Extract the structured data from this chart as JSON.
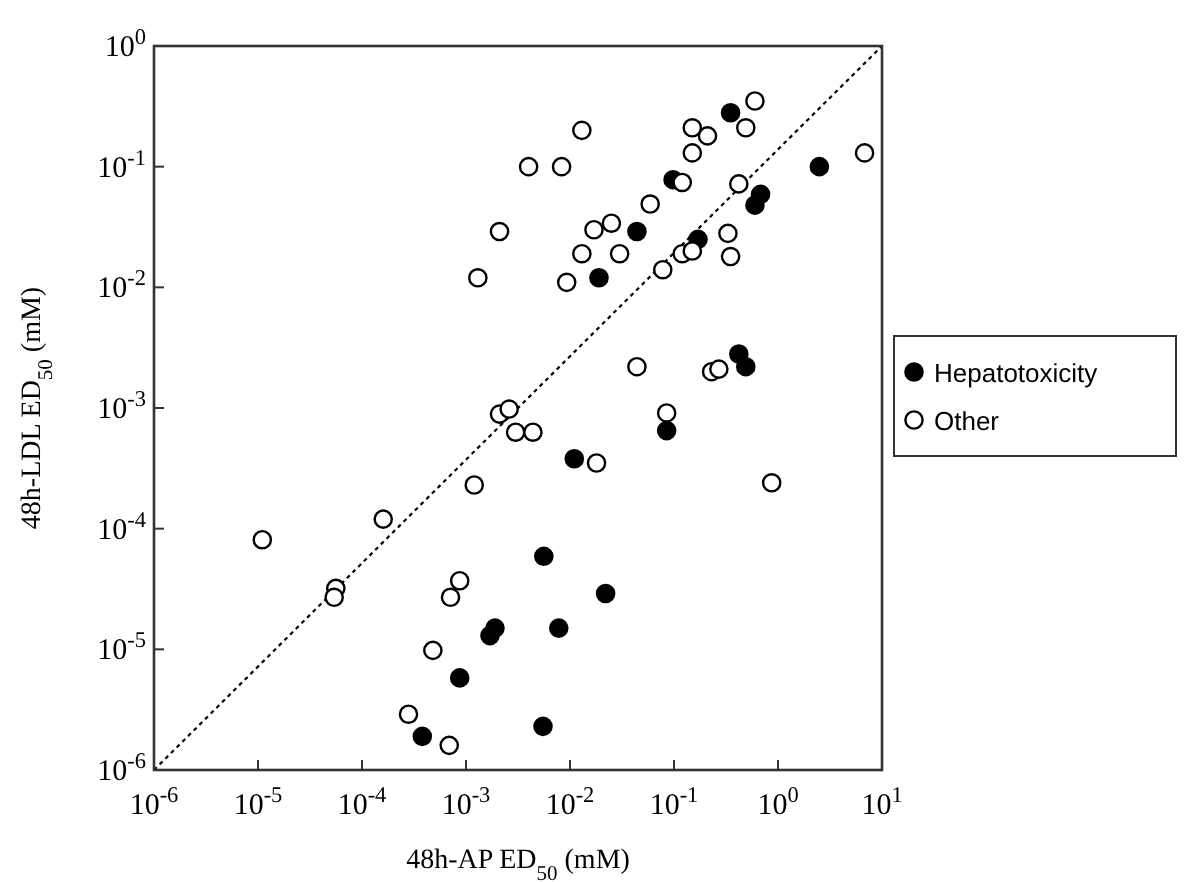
{
  "chart_data": {
    "type": "scatter",
    "xlabel": "48h-AP ED$_{50}$ (mM)",
    "ylabel": "48h-LDL ED$_{50}$ (mM)",
    "log": "xy",
    "grid": false,
    "legend": "right",
    "marker": "circle",
    "xlim": [
      1e-06,
      10
    ],
    "ylim": [
      1e-06,
      1
    ],
    "xticks": [
      {
        "value": 1e-06,
        "label": "10$^{-6}$"
      },
      {
        "value": 1e-05,
        "label": "10$^{-5}$"
      },
      {
        "value": 0.0001,
        "label": "10$^{-4}$"
      },
      {
        "value": 0.001,
        "label": "10$^{-3}$"
      },
      {
        "value": 0.01,
        "label": "10$^{-2}$"
      },
      {
        "value": 0.1,
        "label": "10$^{-1}$"
      },
      {
        "value": 1,
        "label": "10$^{0}$"
      },
      {
        "value": 10,
        "label": "10$^{1}$"
      }
    ],
    "yticks": [
      {
        "value": 1e-06,
        "label": "10$^{-6}$"
      },
      {
        "value": 1e-05,
        "label": "10$^{-5}$"
      },
      {
        "value": 0.0001,
        "label": "10$^{-4}$"
      },
      {
        "value": 0.001,
        "label": "10$^{-3}$"
      },
      {
        "value": 0.01,
        "label": "10$^{-2}$"
      },
      {
        "value": 0.1,
        "label": "10$^{-1}$"
      },
      {
        "value": 1,
        "label": "10$^{0}$"
      }
    ],
    "series": [
      {
        "type": "line",
        "color": "#000000",
        "line_style": "dotted",
        "marker": "none",
        "x": [
          1e-06,
          10
        ],
        "values": [
          1e-06,
          1
        ]
      },
      {
        "name": "Hepatotoxicity",
        "color": "#000000",
        "x": [
          0.019,
          0.044,
          0.098,
          0.17,
          0.35,
          0.68,
          0.6,
          2.5,
          0.42,
          0.49,
          0.085,
          0.011,
          0.0056,
          0.022,
          0.0019,
          0.0017,
          0.0078,
          0.00087,
          0.00038,
          0.0055
        ],
        "values": [
          0.012,
          0.029,
          0.078,
          0.025,
          0.28,
          0.059,
          0.048,
          0.1,
          0.0028,
          0.0022,
          0.00065,
          0.00038,
          5.9e-05,
          2.9e-05,
          1.5e-05,
          1.3e-05,
          1.5e-05,
          5.8e-06,
          1.9e-06,
          2.3e-06
        ]
      },
      {
        "name": "Other",
        "color": "#ffffff",
        "x": [
          0.004,
          0.0083,
          0.013,
          0.0021,
          0.0013,
          0.0093,
          0.013,
          0.017,
          0.025,
          0.03,
          0.059,
          0.12,
          0.078,
          0.12,
          0.15,
          0.15,
          0.15,
          0.21,
          0.49,
          0.6,
          0.42,
          0.33,
          0.35,
          6.8,
          0.044,
          0.23,
          0.27,
          0.0021,
          0.0026,
          0.003,
          0.0044,
          0.085,
          0.018,
          0.0012,
          0.87,
          0.00016,
          1.1e-05,
          5.6e-05,
          5.4e-05,
          0.00087,
          0.00071,
          0.00048,
          0.00028,
          0.00069
        ],
        "values": [
          0.1,
          0.1,
          0.2,
          0.029,
          0.012,
          0.011,
          0.019,
          0.03,
          0.034,
          0.019,
          0.049,
          0.074,
          0.014,
          0.019,
          0.02,
          0.13,
          0.21,
          0.18,
          0.21,
          0.35,
          0.072,
          0.028,
          0.018,
          0.13,
          0.0022,
          0.002,
          0.0021,
          0.00089,
          0.00098,
          0.00063,
          0.00063,
          0.00091,
          0.00035,
          0.00023,
          0.00024,
          0.00012,
          8.1e-05,
          3.2e-05,
          2.7e-05,
          3.7e-05,
          2.7e-05,
          9.8e-06,
          2.9e-06,
          1.6e-06
        ]
      }
    ]
  }
}
